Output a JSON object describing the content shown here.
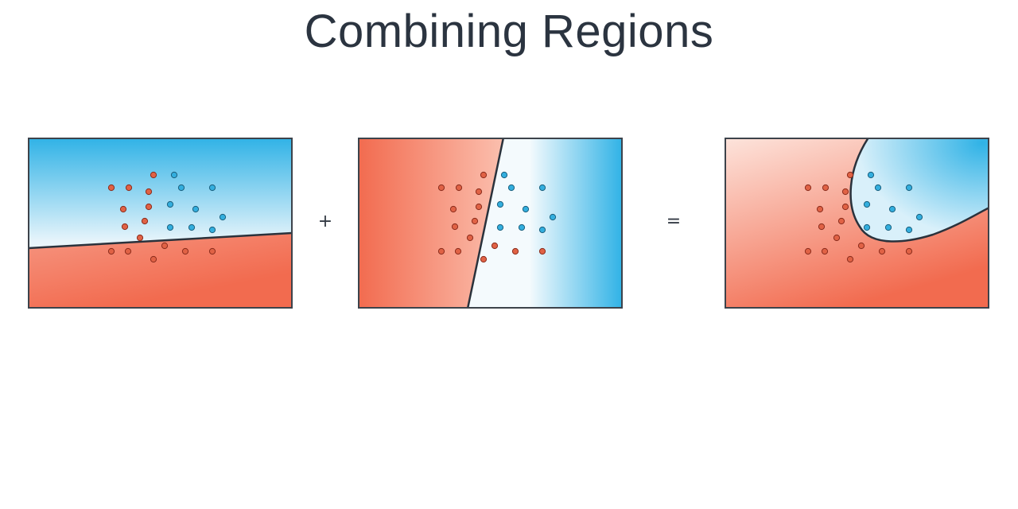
{
  "title": "Combining Regions",
  "operators": {
    "plus": "+",
    "equals": "="
  },
  "colors": {
    "red_region": "#f26b4f",
    "blue_region": "#2fb2e6",
    "red_point": "#e06245",
    "blue_point": "#33aede",
    "boundary": "#2a323c",
    "title": "#2b3440"
  },
  "panels": [
    {
      "id": "horizontal",
      "boundary": "linear (slightly tilted, near-horizontal)",
      "upper_region": "blue",
      "lower_region": "red"
    },
    {
      "id": "vertical",
      "boundary": "linear (slightly tilted, near-vertical)",
      "left_region": "red",
      "right_region": "blue"
    },
    {
      "id": "combined",
      "boundary": "curved (intersection of both regions)",
      "inner_region": "blue",
      "outer_region": "red"
    }
  ]
}
